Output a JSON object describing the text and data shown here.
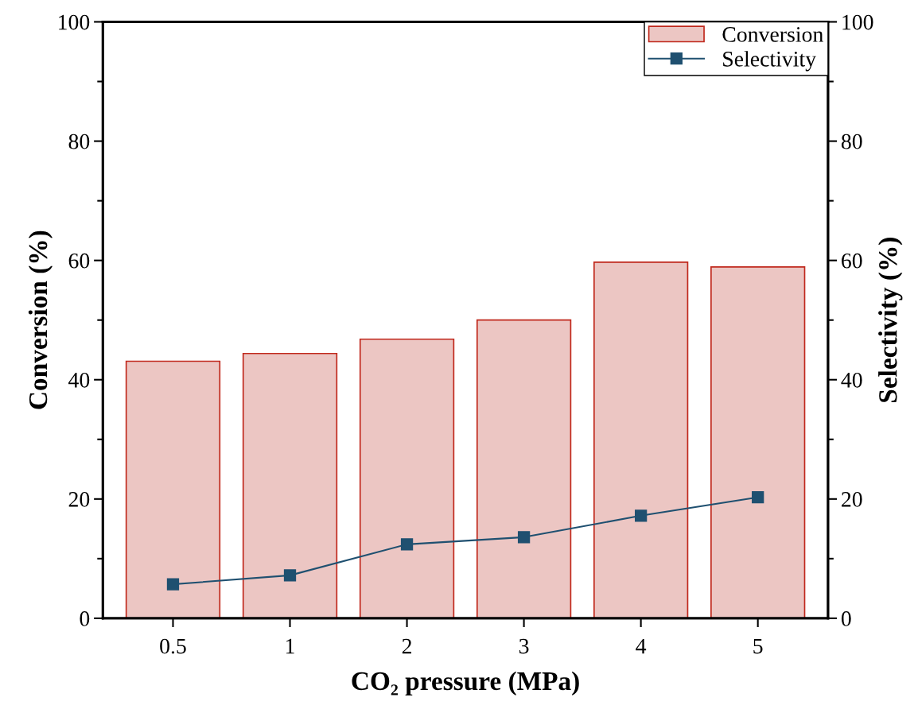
{
  "chart_data": {
    "type": "bar",
    "xlabel": "CO₂ pressure (MPa)",
    "ylabel": "Conversion (%)",
    "y2label": "Selectivity (%)",
    "categories": [
      "0.5",
      "1",
      "2",
      "3",
      "4",
      "5"
    ],
    "series": [
      {
        "name": "Conversion",
        "color": "#ecc6c3",
        "values": [
          43.1,
          44.4,
          46.8,
          50.0,
          59.7,
          58.9
        ]
      },
      {
        "name": "Selectivity",
        "type": "line",
        "axis": "y2",
        "color": "#1f5070",
        "marker": "square",
        "values": [
          5.7,
          7.2,
          12.4,
          13.6,
          17.2,
          20.3
        ]
      }
    ],
    "ylim": [
      0,
      100
    ],
    "yticks": [
      0,
      20,
      40,
      60,
      80,
      100
    ],
    "y2lim": [
      0,
      100
    ],
    "y2ticks": [
      0,
      20,
      40,
      60,
      80,
      100
    ],
    "grid": false,
    "legend": "top right"
  }
}
